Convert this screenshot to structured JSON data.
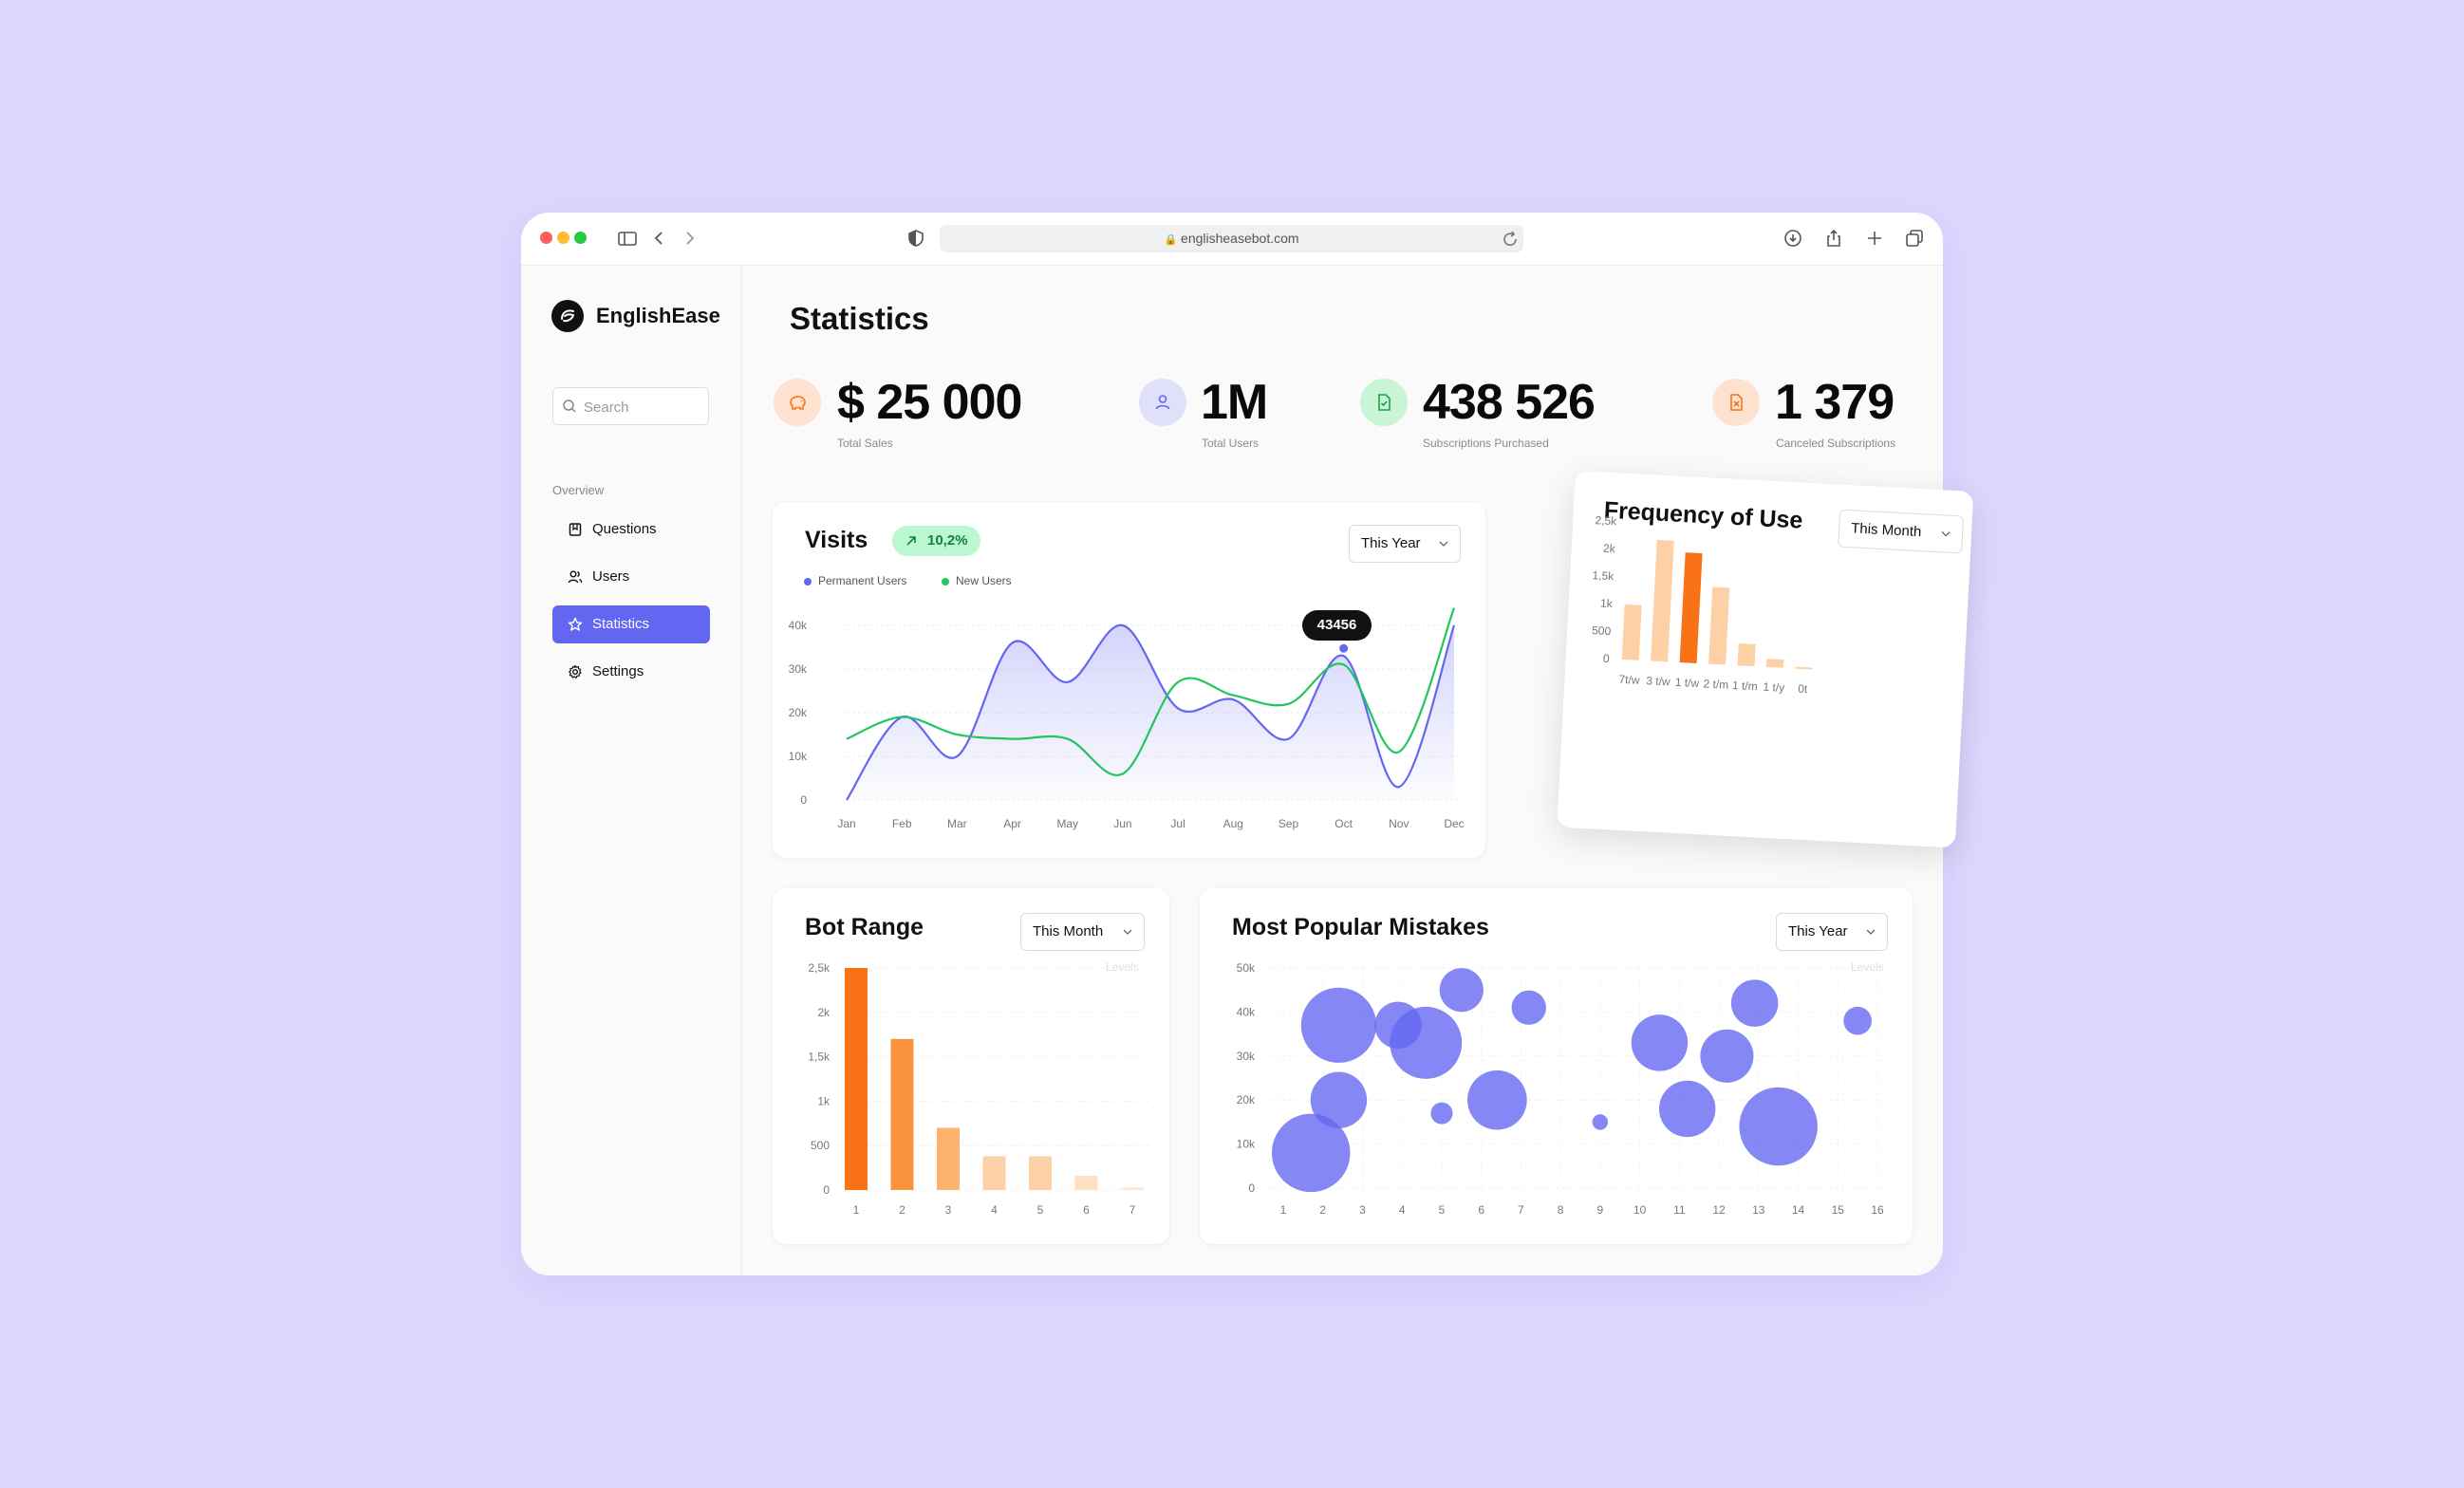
{
  "browser": {
    "url": "englisheasebot.com",
    "traffic_lights": {
      "close": "#FF5F57",
      "minimize": "#FEBC2E",
      "maximize": "#28C840"
    }
  },
  "sidebar": {
    "brand": "EnglishEase",
    "search_placeholder": "Search",
    "section_label": "Overview",
    "items": [
      {
        "label": "Questions",
        "icon": "bookmark-icon",
        "active": false
      },
      {
        "label": "Users",
        "icon": "users-icon",
        "active": false
      },
      {
        "label": "Statistics",
        "icon": "star-icon",
        "active": true
      },
      {
        "label": "Settings",
        "icon": "gear-icon",
        "active": false
      }
    ]
  },
  "page": {
    "title": "Statistics"
  },
  "kpis": [
    {
      "value": "$ 25 000",
      "label": "Total Sales",
      "icon": "piggy-bank-icon",
      "color": "#FDE2CF"
    },
    {
      "value": "1M",
      "label": "Total Users",
      "icon": "user-icon",
      "color": "#E0E0FB"
    },
    {
      "value": "438 526",
      "label": "Subscriptions Purchased",
      "icon": "file-check-icon",
      "color": "#C9F5D6"
    },
    {
      "value": "1 379",
      "label": "Canceled Subscriptions",
      "icon": "file-x-icon",
      "color": "#FDE2CF"
    }
  ],
  "visits": {
    "title": "Visits",
    "badge": "10,2%",
    "dropdown": "This Year",
    "tooltip": "43456",
    "legend": [
      {
        "name": "Permanent Users",
        "color": "#6366F1"
      },
      {
        "name": "New Users",
        "color": "#22C55E"
      }
    ]
  },
  "frequency": {
    "title": "Frequency of Use",
    "dropdown": "This Month"
  },
  "bot_range": {
    "title": "Bot Range",
    "dropdown": "This Month",
    "levels_label": "Levels"
  },
  "mistakes": {
    "title": "Most Popular Mistakes",
    "dropdown": "This Year",
    "levels_label": "Levels"
  },
  "chart_data": [
    {
      "id": "visits",
      "type": "area",
      "title": "Visits",
      "categories": [
        "Jan",
        "Feb",
        "Mar",
        "Apr",
        "May",
        "Jun",
        "Jul",
        "Aug",
        "Sep",
        "Oct",
        "Nov",
        "Dec"
      ],
      "yticks": [
        "0",
        "10k",
        "20k",
        "30k",
        "40k"
      ],
      "ylim": [
        0,
        40000
      ],
      "series": [
        {
          "name": "Permanent Users",
          "color": "#6366F1",
          "values": [
            0,
            19000,
            10000,
            36000,
            27000,
            40000,
            21000,
            23000,
            14000,
            33000,
            3000,
            40000
          ]
        },
        {
          "name": "New Users",
          "color": "#22C55E",
          "values": [
            14000,
            19000,
            15000,
            14000,
            14000,
            6000,
            27000,
            24000,
            22000,
            31000,
            11000,
            44000
          ]
        }
      ],
      "highlight": {
        "index": 9,
        "value": "43456"
      }
    },
    {
      "id": "frequency",
      "type": "bar",
      "title": "Frequency of Use",
      "categories": [
        "7t/w",
        "3 t/w",
        "1 t/w",
        "2 t/m",
        "1 t/m",
        "1 t/y",
        "0t"
      ],
      "values": [
        1000,
        2200,
        2000,
        1400,
        400,
        150,
        30
      ],
      "highlight_index": 2,
      "yticks": [
        "0",
        "500",
        "1k",
        "1,5k",
        "2k",
        "2,5k"
      ],
      "ylim": [
        0,
        2500
      ]
    },
    {
      "id": "bot_range",
      "type": "bar",
      "title": "Bot Range",
      "categories": [
        "1",
        "2",
        "3",
        "4",
        "5",
        "6",
        "7"
      ],
      "values": [
        2500,
        1700,
        700,
        380,
        380,
        160,
        30
      ],
      "yticks": [
        "0",
        "500",
        "1k",
        "1,5k",
        "2k",
        "2,5k"
      ],
      "ylim": [
        0,
        2500
      ]
    },
    {
      "id": "mistakes",
      "type": "scatter",
      "title": "Most Popular Mistakes",
      "categories": [
        "1",
        "2",
        "3",
        "4",
        "5",
        "6",
        "7",
        "8",
        "9",
        "10",
        "11",
        "12",
        "13",
        "14",
        "15",
        "16"
      ],
      "yticks": [
        "0",
        "10k",
        "20k",
        "30k",
        "40k",
        "50k"
      ],
      "ylim": [
        0,
        50000
      ],
      "points": [
        {
          "x": 1.7,
          "y": 8000,
          "r": 25
        },
        {
          "x": 2.4,
          "y": 20000,
          "r": 18
        },
        {
          "x": 2.4,
          "y": 37000,
          "r": 24
        },
        {
          "x": 3.9,
          "y": 37000,
          "r": 15
        },
        {
          "x": 4.6,
          "y": 33000,
          "r": 23
        },
        {
          "x": 5.5,
          "y": 45000,
          "r": 14
        },
        {
          "x": 5.0,
          "y": 17000,
          "r": 7
        },
        {
          "x": 6.4,
          "y": 20000,
          "r": 19
        },
        {
          "x": 7.2,
          "y": 41000,
          "r": 11
        },
        {
          "x": 9.0,
          "y": 15000,
          "r": 5
        },
        {
          "x": 10.5,
          "y": 33000,
          "r": 18
        },
        {
          "x": 11.2,
          "y": 18000,
          "r": 18
        },
        {
          "x": 12.2,
          "y": 30000,
          "r": 17
        },
        {
          "x": 12.9,
          "y": 42000,
          "r": 15
        },
        {
          "x": 13.5,
          "y": 14000,
          "r": 25
        },
        {
          "x": 15.5,
          "y": 38000,
          "r": 9
        }
      ]
    }
  ]
}
